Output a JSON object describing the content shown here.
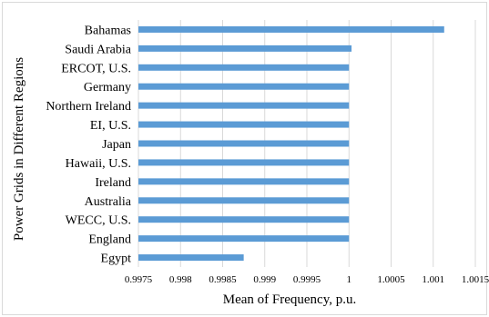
{
  "chart_data": {
    "type": "bar",
    "orientation": "horizontal",
    "title": "",
    "xlabel": "Mean of Frequency, p.u.",
    "ylabel": "Power Grids in Different Regions",
    "categories": [
      "Bahamas",
      "Saudi Arabia",
      "ERCOT, U.S.",
      "Germany",
      "Northern Ireland",
      "EI, U.S.",
      "Japan",
      "Hawaii, U.S.",
      "Ireland",
      "Australia",
      "WECC, U.S.",
      "England",
      "Egypt"
    ],
    "values": [
      1.00113,
      1.00003,
      1.0,
      1.0,
      1.0,
      1.0,
      1.0,
      1.0,
      1.0,
      1.0,
      1.0,
      1.0,
      0.99875
    ],
    "xlim": [
      0.9975,
      1.0015
    ],
    "xticks": [
      "0.9975",
      "0.998",
      "0.9985",
      "0.999",
      "0.9995",
      "1",
      "1.0005",
      "1.001",
      "1.0015"
    ],
    "grid": "vertical",
    "bar_color": "#5b9bd5"
  }
}
